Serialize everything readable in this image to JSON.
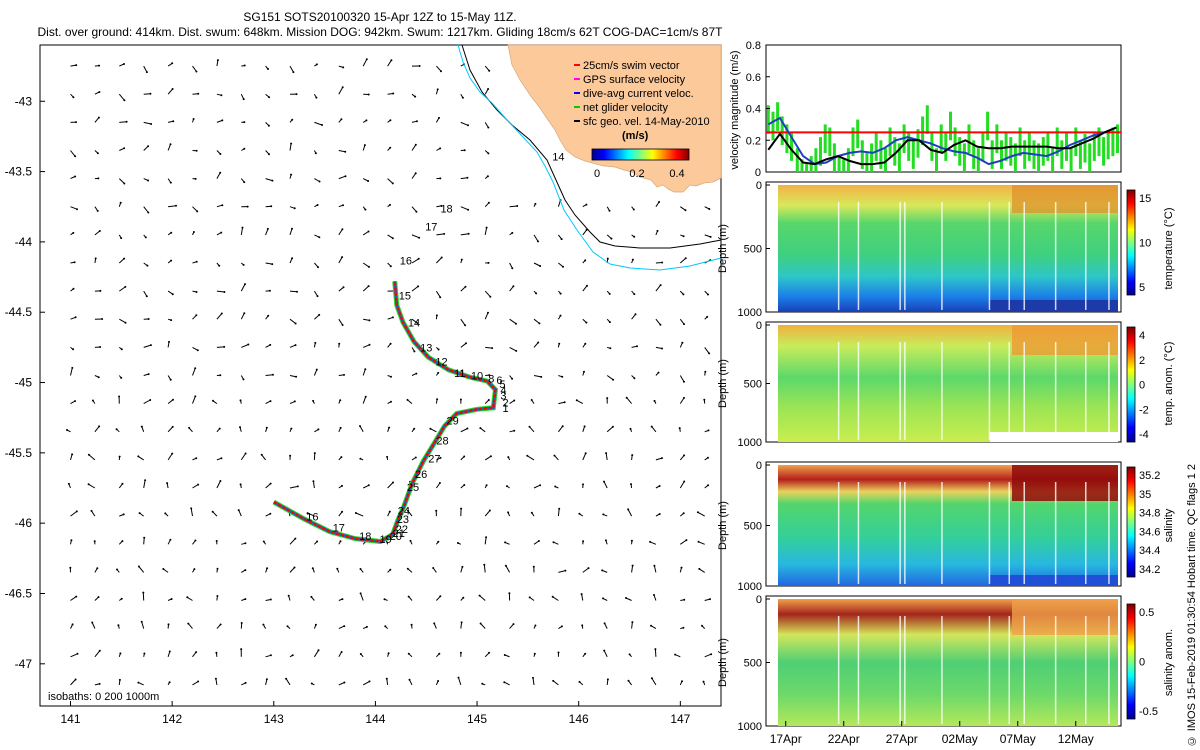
{
  "title": {
    "line1": "SG151 SOTS20100320 15-Apr 12Z to 15-May 11Z.",
    "line2": "Dist. over ground: 414km. Dist. swum: 648km. Mission DOG: 942km. Swum: 1217km. Gliding 18cm/s 62T COG-DAC=1cm/s 87T"
  },
  "sidebar_note": "© IMOS 15-Feb-2019 01:30:54 Hobart time. QC flags 1 2",
  "chart_data": [
    {
      "id": "track_map",
      "type": "scatter",
      "title": "",
      "xlabel": "",
      "ylabel": "",
      "xlim": [
        140.7,
        147.4
      ],
      "ylim": [
        -47.3,
        -42.6
      ],
      "x_ticks": [
        "141",
        "142",
        "143",
        "144",
        "145",
        "146",
        "147"
      ],
      "y_ticks": [
        "-43",
        "-43.5",
        "-44",
        "-44.5",
        "-45",
        "-45.5",
        "-46",
        "-46.5",
        "-47"
      ],
      "legend": [
        {
          "label": "25cm/s swim vector",
          "color": "#ff0000"
        },
        {
          "label": "GPS surface velocity",
          "color": "#ff00ff"
        },
        {
          "label": "dive-avg current veloc.",
          "color": "#0000ff"
        },
        {
          "label": "net glider velocity",
          "color": "#00cc00"
        },
        {
          "label": "sfc geo. vel. 14-May-2010",
          "color": "#000000"
        }
      ],
      "colorbar": {
        "label": "(m/s)",
        "ticks": [
          "0",
          "0.2",
          "0.4"
        ]
      },
      "isobath_note": "isobaths: 0   200   1000m",
      "land_color": "#fcc99b",
      "track": [
        [
          143.0,
          -45.85
        ],
        [
          143.3,
          -45.97
        ],
        [
          143.55,
          -46.06
        ],
        [
          143.8,
          -46.11
        ],
        [
          144.05,
          -46.13
        ],
        [
          144.17,
          -46.08
        ],
        [
          144.22,
          -45.98
        ],
        [
          144.28,
          -45.88
        ],
        [
          144.36,
          -45.72
        ],
        [
          144.47,
          -45.56
        ],
        [
          144.58,
          -45.43
        ],
        [
          144.68,
          -45.31
        ],
        [
          144.8,
          -45.22
        ],
        [
          145.0,
          -45.19
        ],
        [
          145.16,
          -45.18
        ],
        [
          145.18,
          -45.05
        ],
        [
          145.1,
          -44.99
        ],
        [
          144.92,
          -44.96
        ],
        [
          144.72,
          -44.91
        ],
        [
          144.52,
          -44.82
        ],
        [
          144.38,
          -44.71
        ],
        [
          144.27,
          -44.57
        ],
        [
          144.21,
          -44.45
        ],
        [
          144.19,
          -44.28
        ]
      ],
      "track_labels": [
        {
          "t": "16",
          "x": 143.38,
          "y": -45.98
        },
        {
          "t": "17",
          "x": 143.64,
          "y": -46.06
        },
        {
          "t": "18",
          "x": 143.9,
          "y": -46.12
        },
        {
          "t": "19",
          "x": 144.1,
          "y": -46.14
        },
        {
          "t": "20",
          "x": 144.2,
          "y": -46.12
        },
        {
          "t": "21",
          "x": 144.23,
          "y": -46.1
        },
        {
          "t": "22",
          "x": 144.26,
          "y": -46.07
        },
        {
          "t": "23",
          "x": 144.27,
          "y": -46.0
        },
        {
          "t": "24",
          "x": 144.28,
          "y": -45.94
        },
        {
          "t": "25",
          "x": 144.37,
          "y": -45.77
        },
        {
          "t": "26",
          "x": 144.45,
          "y": -45.68
        },
        {
          "t": "27",
          "x": 144.58,
          "y": -45.57
        },
        {
          "t": "28",
          "x": 144.66,
          "y": -45.44
        },
        {
          "t": "29",
          "x": 144.76,
          "y": -45.3
        },
        {
          "t": "1",
          "x": 145.28,
          "y": -45.21
        },
        {
          "t": "2",
          "x": 145.28,
          "y": -45.17
        },
        {
          "t": "3",
          "x": 145.26,
          "y": -45.12
        },
        {
          "t": "4",
          "x": 145.26,
          "y": -45.08
        },
        {
          "t": "5",
          "x": 145.25,
          "y": -45.04
        },
        {
          "t": "6",
          "x": 145.22,
          "y": -45.01
        },
        {
          "t": "8",
          "x": 145.14,
          "y": -45.0
        },
        {
          "t": "10",
          "x": 145.0,
          "y": -44.98
        },
        {
          "t": "11",
          "x": 144.83,
          "y": -44.96
        },
        {
          "t": "12",
          "x": 144.65,
          "y": -44.88
        },
        {
          "t": "13",
          "x": 144.5,
          "y": -44.78
        },
        {
          "t": "14",
          "x": 144.38,
          "y": -44.6
        },
        {
          "t": "15",
          "x": 144.29,
          "y": -44.41
        },
        {
          "t": "16",
          "x": 144.3,
          "y": -44.16
        },
        {
          "t": "17",
          "x": 144.55,
          "y": -43.92
        },
        {
          "t": "18",
          "x": 144.7,
          "y": -43.79
        },
        {
          "t": "14",
          "x": 145.8,
          "y": -43.42
        }
      ]
    },
    {
      "id": "velocity",
      "type": "line",
      "ylabel": "velocity magnitude (m/s)",
      "ylim": [
        0,
        0.8
      ],
      "y_ticks": [
        "0",
        "0.2",
        "0.4",
        "0.6",
        "0.8"
      ],
      "threshold": 0.25,
      "series": [
        {
          "name": "dive-avg current",
          "color": "#1f3fbf",
          "x": [
            15.5,
            16.5,
            17.5,
            18.5,
            19.5,
            20.5,
            21.5,
            22.5,
            23.5,
            24.5,
            25.5,
            26.5,
            27.5,
            28.5,
            29.5,
            30.5,
            31.5,
            32.5,
            33.5,
            34.5,
            35.5,
            36.5,
            37.5,
            38.5,
            39.5,
            40.5,
            41.5,
            42.5,
            43.5,
            44.5,
            45.5
          ],
          "y": [
            0.3,
            0.34,
            0.22,
            0.1,
            0.05,
            0.06,
            0.1,
            0.12,
            0.13,
            0.12,
            0.15,
            0.2,
            0.22,
            0.2,
            0.18,
            0.15,
            0.13,
            0.12,
            0.09,
            0.05,
            0.07,
            0.1,
            0.12,
            0.11,
            0.1,
            0.13,
            0.17,
            0.2,
            0.23,
            0.25,
            0.28
          ]
        },
        {
          "name": "geostrophic",
          "color": "#000000",
          "x": [
            15.5,
            16.5,
            17.5,
            18.5,
            19.5,
            20.5,
            21.5,
            22.5,
            23.5,
            24.5,
            25.5,
            26.5,
            27.5,
            28.5,
            29.5,
            30.5,
            31.5,
            32.5,
            33.5,
            34.5,
            35.5,
            36.5,
            37.5,
            38.5,
            39.5,
            40.5,
            41.5,
            42.5,
            43.5,
            44.5,
            45.5
          ],
          "y": [
            0.14,
            0.24,
            0.14,
            0.06,
            0.05,
            0.08,
            0.1,
            0.07,
            0.05,
            0.05,
            0.06,
            0.12,
            0.2,
            0.2,
            0.14,
            0.12,
            0.17,
            0.2,
            0.16,
            0.15,
            0.15,
            0.16,
            0.16,
            0.16,
            0.16,
            0.15,
            0.15,
            0.18,
            0.21,
            0.25,
            0.28
          ]
        },
        {
          "name": "net glider velocity",
          "color": "#22dd22",
          "style": "bars",
          "x": [
            15.5,
            15.9,
            16.3,
            16.7,
            17.1,
            17.5,
            18.0,
            18.4,
            18.8,
            19.2,
            19.6,
            20.0,
            20.4,
            20.8,
            21.2,
            21.6,
            22.0,
            22.4,
            22.8,
            23.2,
            23.6,
            24.0,
            24.4,
            24.8,
            25.2,
            25.6,
            26.0,
            26.4,
            26.8,
            27.2,
            27.6,
            28.0,
            28.4,
            28.8,
            29.2,
            29.6,
            30.0,
            30.4,
            30.8,
            31.2,
            31.6,
            32.0,
            32.4,
            32.8,
            33.2,
            33.6,
            34.0,
            34.4,
            34.8,
            35.2,
            35.6,
            36.0,
            36.4,
            36.8,
            37.2,
            37.6,
            38.0,
            38.4,
            38.8,
            39.2,
            39.6,
            40.0,
            40.4,
            40.8,
            41.2,
            41.6,
            42.0,
            42.4,
            42.8,
            43.2,
            43.6,
            44.0,
            44.4,
            44.8,
            45.2,
            45.6
          ],
          "y": [
            0.42,
            0.38,
            0.44,
            0.35,
            0.3,
            0.25,
            0.15,
            0.08,
            0.05,
            0.1,
            0.15,
            0.22,
            0.3,
            0.28,
            0.18,
            0.1,
            0.08,
            0.15,
            0.28,
            0.33,
            0.2,
            0.12,
            0.18,
            0.25,
            0.2,
            0.15,
            0.28,
            0.22,
            0.18,
            0.3,
            0.25,
            0.2,
            0.27,
            0.35,
            0.42,
            0.25,
            0.15,
            0.3,
            0.25,
            0.38,
            0.28,
            0.22,
            0.18,
            0.3,
            0.2,
            0.15,
            0.25,
            0.38,
            0.2,
            0.3,
            0.2,
            0.25,
            0.22,
            0.18,
            0.28,
            0.2,
            0.25,
            0.2,
            0.18,
            0.22,
            0.25,
            0.15,
            0.28,
            0.2,
            0.25,
            0.15,
            0.28,
            0.2,
            0.24,
            0.18,
            0.25,
            0.28,
            0.22,
            0.26,
            0.28,
            0.3
          ]
        }
      ]
    },
    {
      "id": "temperature",
      "type": "heatmap",
      "ylabel": "Depth (m)",
      "y_ticks": [
        "0",
        "500",
        "1000"
      ],
      "cbar_label": "temperature (°C)",
      "cbar_ticks": [
        "15",
        "10",
        "5"
      ],
      "cmap": "jet"
    },
    {
      "id": "temp_anom",
      "type": "heatmap",
      "ylabel": "Depth (m)",
      "y_ticks": [
        "0",
        "500",
        "1000"
      ],
      "cbar_label": "temp. anom. (°C)",
      "cbar_ticks": [
        "4",
        "2",
        "0",
        "-2",
        "-4"
      ],
      "cmap": "jet"
    },
    {
      "id": "salinity",
      "type": "heatmap",
      "ylabel": "Depth (m)",
      "y_ticks": [
        "0",
        "500",
        "1000"
      ],
      "cbar_label": "salinity",
      "cbar_ticks": [
        "35.2",
        "35",
        "34.8",
        "34.6",
        "34.4",
        "34.2"
      ],
      "cmap": "jet"
    },
    {
      "id": "sal_anom",
      "type": "heatmap",
      "ylabel": "Depth (m)",
      "y_ticks": [
        "0",
        "500",
        "1000"
      ],
      "cbar_label": "salinity anom.",
      "cbar_ticks": [
        "0.5",
        "0",
        "-0.5"
      ],
      "cmap": "jet",
      "x_ticks": [
        "17Apr",
        "22Apr",
        "27Apr",
        "02May",
        "07May",
        "12May"
      ]
    }
  ]
}
